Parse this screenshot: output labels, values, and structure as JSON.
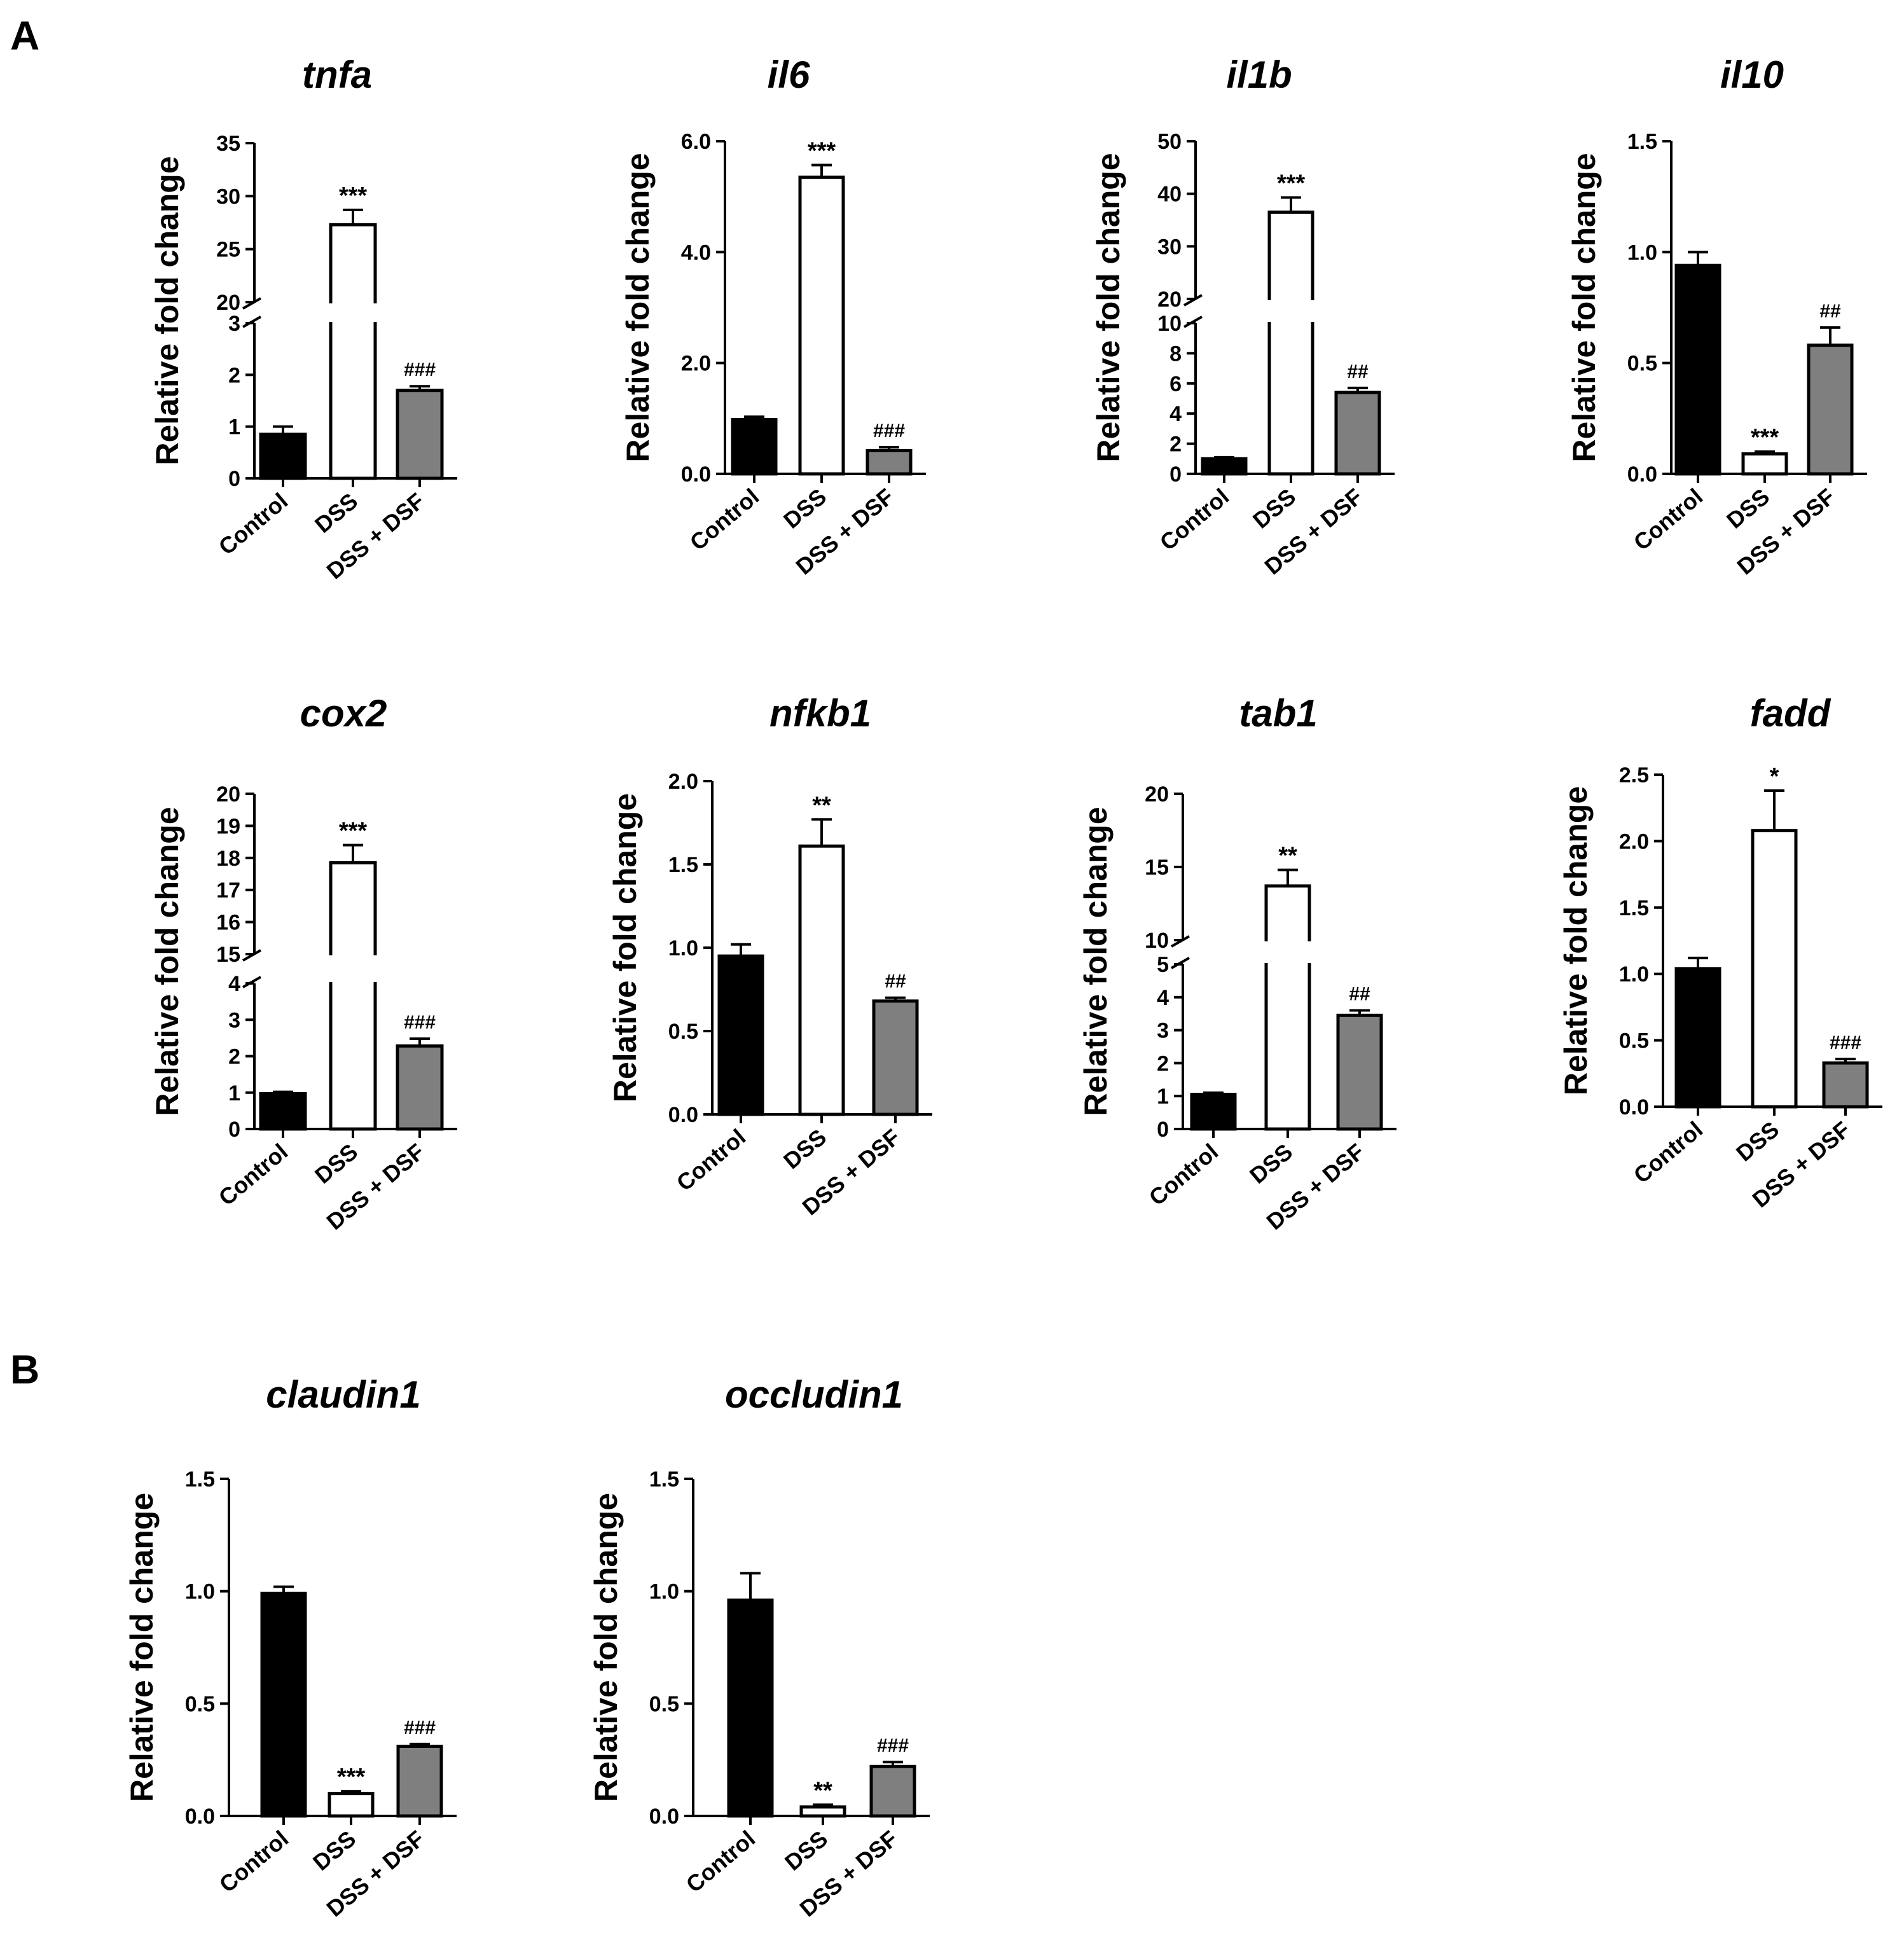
{
  "figure": {
    "panels": [
      {
        "label": "A"
      },
      {
        "label": "B"
      }
    ]
  },
  "colors": {
    "control": "#000000",
    "dss": "#ffffff",
    "dss_dsf": "#7f7f7f",
    "axis": "#000000"
  },
  "chart_data": [
    {
      "type": "bar",
      "panel": "A",
      "title": "tnfa",
      "ylabel": "Relative fold change",
      "categories": [
        "Control",
        "DSS",
        "DSS + DSF"
      ],
      "values": [
        0.85,
        27.3,
        1.7
      ],
      "errors": [
        0.15,
        1.4,
        0.08
      ],
      "annotations": [
        "",
        "***",
        "###"
      ],
      "axis_break": {
        "lower": [
          0,
          3
        ],
        "upper": [
          20,
          35
        ]
      },
      "lower_ticks": [
        "0",
        "1",
        "2",
        "3"
      ],
      "upper_ticks": [
        "20",
        "25",
        "30",
        "35"
      ]
    },
    {
      "type": "bar",
      "panel": "A",
      "title": "il6",
      "ylabel": "Relative fold change",
      "categories": [
        "Control",
        "DSS",
        "DSS + DSF"
      ],
      "values": [
        0.98,
        5.35,
        0.42
      ],
      "errors": [
        0.05,
        0.22,
        0.06
      ],
      "annotations": [
        "",
        "***",
        "###"
      ],
      "ylim": [
        0,
        6
      ],
      "ticks": [
        "0.0",
        "2.0",
        "4.0",
        "6.0"
      ]
    },
    {
      "type": "bar",
      "panel": "A",
      "title": "il1b",
      "ylabel": "Relative fold change",
      "categories": [
        "Control",
        "DSS",
        "DSS + DSF"
      ],
      "values": [
        1.0,
        36.5,
        5.4
      ],
      "errors": [
        0.1,
        2.8,
        0.3
      ],
      "annotations": [
        "",
        "***",
        "##"
      ],
      "axis_break": {
        "lower": [
          0,
          10
        ],
        "upper": [
          20,
          50
        ]
      },
      "lower_ticks": [
        "0",
        "2",
        "4",
        "6",
        "8",
        "10"
      ],
      "upper_ticks": [
        "20",
        "30",
        "40",
        "50"
      ]
    },
    {
      "type": "bar",
      "panel": "A",
      "title": "il10",
      "ylabel": "Relative fold change",
      "categories": [
        "Control",
        "DSS",
        "DSS + DSF"
      ],
      "values": [
        0.94,
        0.09,
        0.58
      ],
      "errors": [
        0.06,
        0.01,
        0.08
      ],
      "annotations": [
        "",
        "***",
        "##"
      ],
      "ylim": [
        0,
        1.5
      ],
      "ticks": [
        "0.0",
        "0.5",
        "1.0",
        "1.5"
      ]
    },
    {
      "type": "bar",
      "panel": "A",
      "title": "cox2",
      "ylabel": "Relative fold change",
      "categories": [
        "Control",
        "DSS",
        "DSS + DSF"
      ],
      "values": [
        0.97,
        17.85,
        2.28
      ],
      "errors": [
        0.05,
        0.55,
        0.2
      ],
      "annotations": [
        "",
        "***",
        "###"
      ],
      "axis_break": {
        "lower": [
          0,
          4
        ],
        "upper": [
          15,
          20
        ]
      },
      "lower_ticks": [
        "0",
        "1",
        "2",
        "3",
        "4"
      ],
      "upper_ticks": [
        "15",
        "16",
        "17",
        "18",
        "19",
        "20"
      ]
    },
    {
      "type": "bar",
      "panel": "A",
      "title": "nfkb1",
      "ylabel": "Relative fold change",
      "categories": [
        "Control",
        "DSS",
        "DSS + DSF"
      ],
      "values": [
        0.95,
        1.61,
        0.68
      ],
      "errors": [
        0.07,
        0.16,
        0.02
      ],
      "annotations": [
        "",
        "**",
        "##"
      ],
      "ylim": [
        0,
        2
      ],
      "ticks": [
        "0.0",
        "0.5",
        "1.0",
        "1.5",
        "2.0"
      ]
    },
    {
      "type": "bar",
      "panel": "A",
      "title": "tab1",
      "ylabel": "Relative fold change",
      "categories": [
        "Control",
        "DSS",
        "DSS + DSF"
      ],
      "values": [
        1.05,
        13.7,
        3.45
      ],
      "errors": [
        0.05,
        1.1,
        0.15
      ],
      "annotations": [
        "",
        "**",
        "##"
      ],
      "axis_break": {
        "lower": [
          0,
          5
        ],
        "upper": [
          10,
          20
        ]
      },
      "lower_ticks": [
        "0",
        "1",
        "2",
        "3",
        "4",
        "5"
      ],
      "upper_ticks": [
        "10",
        "15",
        "20"
      ]
    },
    {
      "type": "bar",
      "panel": "A",
      "title": "fadd",
      "ylabel": "Relative fold change",
      "categories": [
        "Control",
        "DSS",
        "DSS + DSF"
      ],
      "values": [
        1.04,
        2.08,
        0.33
      ],
      "errors": [
        0.08,
        0.3,
        0.03
      ],
      "annotations": [
        "",
        "*",
        "###"
      ],
      "ylim": [
        0,
        2.5
      ],
      "ticks": [
        "0.0",
        "0.5",
        "1.0",
        "1.5",
        "2.0",
        "2.5"
      ]
    },
    {
      "type": "bar",
      "panel": "B",
      "title": "claudin1",
      "ylabel": "Relative fold change",
      "categories": [
        "Control",
        "DSS",
        "DSS + DSF"
      ],
      "values": [
        0.99,
        0.1,
        0.31
      ],
      "errors": [
        0.03,
        0.01,
        0.01
      ],
      "annotations": [
        "",
        "***",
        "###"
      ],
      "ylim": [
        0,
        1.5
      ],
      "ticks": [
        "0.0",
        "0.5",
        "1.0",
        "1.5"
      ]
    },
    {
      "type": "bar",
      "panel": "B",
      "title": "occludin1",
      "ylabel": "Relative fold change",
      "categories": [
        "Control",
        "DSS",
        "DSS + DSF"
      ],
      "values": [
        0.96,
        0.04,
        0.22
      ],
      "errors": [
        0.12,
        0.01,
        0.02
      ],
      "annotations": [
        "",
        "**",
        "###"
      ],
      "ylim": [
        0,
        1.5
      ],
      "ticks": [
        "0.0",
        "0.5",
        "1.0",
        "1.5"
      ]
    }
  ]
}
